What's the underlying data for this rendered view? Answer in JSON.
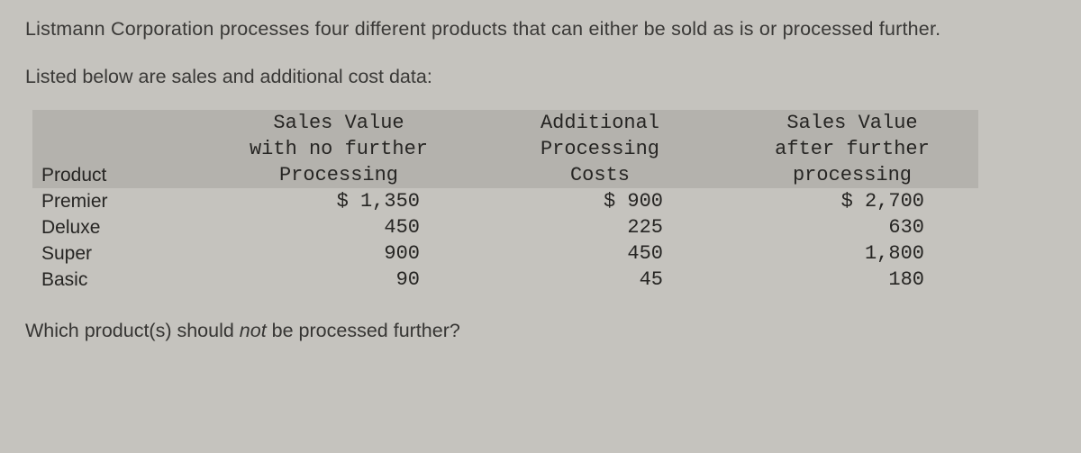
{
  "intro_line1": "Listmann Corporation processes four different products that can either be sold as is or processed further.",
  "intro_line2": "Listed below are sales and additional cost data:",
  "headers": {
    "product": "Product",
    "col1_l1": "Sales Value",
    "col1_l2": "with no further",
    "col1_l3": "Processing",
    "col2_l1": "Additional",
    "col2_l2": "Processing",
    "col2_l3": "Costs",
    "col3_l1": "Sales Value",
    "col3_l2": "after further",
    "col3_l3": "processing"
  },
  "rows": [
    {
      "product": "Premier",
      "c1": "$ 1,350",
      "c2": "$ 900",
      "c3": "$ 2,700"
    },
    {
      "product": "Deluxe",
      "c1": "450",
      "c2": "225",
      "c3": "630"
    },
    {
      "product": "Super",
      "c1": "900",
      "c2": "450",
      "c3": "1,800"
    },
    {
      "product": "Basic",
      "c1": "90",
      "c2": "45",
      "c3": "180"
    }
  ],
  "question_pre": "Which product(s) should ",
  "question_ital": "not",
  "question_post": " be processed further?",
  "style": {
    "background_color": "#c5c3be",
    "header_shade_color": "#b4b2ad",
    "text_color": "#2e2d2a",
    "mono_font": "Courier New",
    "body_font": "Arial",
    "mono_fontsize_pt": 16,
    "body_fontsize_pt": 16
  }
}
